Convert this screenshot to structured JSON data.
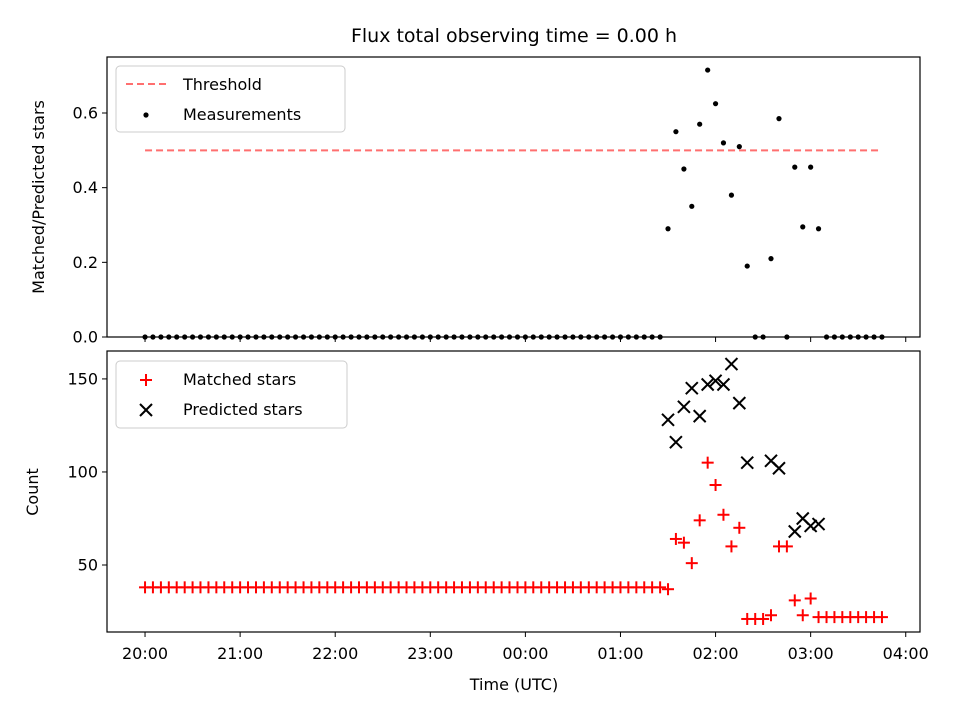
{
  "figure": {
    "title": "Flux total observing time = 0.00 h"
  },
  "chart_data": [
    {
      "type": "scatter",
      "panel": "top",
      "ylabel": "Matched/Predicted stars",
      "ylim": [
        0,
        0.75
      ],
      "yticks": [
        0.0,
        0.2,
        0.4,
        0.6
      ],
      "ytick_labels": [
        "0.0",
        "0.2",
        "0.4",
        "0.6"
      ],
      "xlim_hours": [
        -0.4,
        8.15
      ],
      "x_units": "hours since 20:00 UTC",
      "legend_position": "top-left",
      "threshold": {
        "name": "Threshold",
        "value": 0.5,
        "x_start": 0,
        "x_end": 7.75,
        "color": "#ff6f6f",
        "style": "dashed"
      },
      "series": [
        {
          "name": "Measurements",
          "color": "#000000",
          "marker": "dot",
          "points": [
            [
              0.0,
              0
            ],
            [
              0.083,
              0
            ],
            [
              0.167,
              0
            ],
            [
              0.25,
              0
            ],
            [
              0.333,
              0
            ],
            [
              0.417,
              0
            ],
            [
              0.5,
              0
            ],
            [
              0.583,
              0
            ],
            [
              0.667,
              0
            ],
            [
              0.75,
              0
            ],
            [
              0.833,
              0
            ],
            [
              0.917,
              0
            ],
            [
              1.0,
              0
            ],
            [
              1.083,
              0
            ],
            [
              1.167,
              0
            ],
            [
              1.25,
              0
            ],
            [
              1.333,
              0
            ],
            [
              1.417,
              0
            ],
            [
              1.5,
              0
            ],
            [
              1.583,
              0
            ],
            [
              1.667,
              0
            ],
            [
              1.75,
              0
            ],
            [
              1.833,
              0
            ],
            [
              1.917,
              0
            ],
            [
              2.0,
              0
            ],
            [
              2.083,
              0
            ],
            [
              2.167,
              0
            ],
            [
              2.25,
              0
            ],
            [
              2.333,
              0
            ],
            [
              2.417,
              0
            ],
            [
              2.5,
              0
            ],
            [
              2.583,
              0
            ],
            [
              2.667,
              0
            ],
            [
              2.75,
              0
            ],
            [
              2.833,
              0
            ],
            [
              2.917,
              0
            ],
            [
              3.0,
              0
            ],
            [
              3.083,
              0
            ],
            [
              3.167,
              0
            ],
            [
              3.25,
              0
            ],
            [
              3.333,
              0
            ],
            [
              3.417,
              0
            ],
            [
              3.5,
              0
            ],
            [
              3.583,
              0
            ],
            [
              3.667,
              0
            ],
            [
              3.75,
              0
            ],
            [
              3.833,
              0
            ],
            [
              3.917,
              0
            ],
            [
              4.0,
              0
            ],
            [
              4.083,
              0
            ],
            [
              4.167,
              0
            ],
            [
              4.25,
              0
            ],
            [
              4.333,
              0
            ],
            [
              4.417,
              0
            ],
            [
              4.5,
              0
            ],
            [
              4.583,
              0
            ],
            [
              4.667,
              0
            ],
            [
              4.75,
              0
            ],
            [
              4.833,
              0
            ],
            [
              4.917,
              0
            ],
            [
              5.0,
              0
            ],
            [
              5.083,
              0
            ],
            [
              5.167,
              0
            ],
            [
              5.25,
              0
            ],
            [
              5.333,
              0
            ],
            [
              5.417,
              0
            ],
            [
              5.5,
              0.29
            ],
            [
              5.583,
              0.55
            ],
            [
              5.667,
              0.45
            ],
            [
              5.75,
              0.35
            ],
            [
              5.833,
              0.57
            ],
            [
              5.917,
              0.715
            ],
            [
              6.0,
              0.625
            ],
            [
              6.083,
              0.52
            ],
            [
              6.167,
              0.38
            ],
            [
              6.25,
              0.51
            ],
            [
              6.333,
              0.19
            ],
            [
              6.417,
              0
            ],
            [
              6.5,
              0
            ],
            [
              6.583,
              0.21
            ],
            [
              6.667,
              0.585
            ],
            [
              6.75,
              0
            ],
            [
              6.833,
              0.455
            ],
            [
              6.917,
              0.295
            ],
            [
              7.0,
              0.455
            ],
            [
              7.083,
              0.29
            ],
            [
              7.167,
              0
            ],
            [
              7.25,
              0
            ],
            [
              7.333,
              0
            ],
            [
              7.417,
              0
            ],
            [
              7.5,
              0
            ],
            [
              7.583,
              0
            ],
            [
              7.667,
              0
            ],
            [
              7.75,
              0
            ]
          ]
        }
      ]
    },
    {
      "type": "scatter",
      "panel": "bottom",
      "xlabel": "Time (UTC)",
      "ylabel": "Count",
      "ylim": [
        14,
        165
      ],
      "yticks": [
        50,
        100,
        150
      ],
      "ytick_labels": [
        "50",
        "100",
        "150"
      ],
      "xlim_hours": [
        -0.4,
        8.15
      ],
      "x_units": "hours since 20:00 UTC",
      "xticks": [
        0,
        1,
        2,
        3,
        4,
        5,
        6,
        7,
        8
      ],
      "xtick_labels": [
        "20:00",
        "21:00",
        "22:00",
        "23:00",
        "00:00",
        "01:00",
        "02:00",
        "03:00",
        "04:00"
      ],
      "legend_position": "top-left",
      "series": [
        {
          "name": "Matched stars",
          "color": "#ff0000",
          "marker": "plus",
          "points": [
            [
              0.0,
              38
            ],
            [
              0.083,
              38
            ],
            [
              0.167,
              38
            ],
            [
              0.25,
              38
            ],
            [
              0.333,
              38
            ],
            [
              0.417,
              38
            ],
            [
              0.5,
              38
            ],
            [
              0.583,
              38
            ],
            [
              0.667,
              38
            ],
            [
              0.75,
              38
            ],
            [
              0.833,
              38
            ],
            [
              0.917,
              38
            ],
            [
              1.0,
              38
            ],
            [
              1.083,
              38
            ],
            [
              1.167,
              38
            ],
            [
              1.25,
              38
            ],
            [
              1.333,
              38
            ],
            [
              1.417,
              38
            ],
            [
              1.5,
              38
            ],
            [
              1.583,
              38
            ],
            [
              1.667,
              38
            ],
            [
              1.75,
              38
            ],
            [
              1.833,
              38
            ],
            [
              1.917,
              38
            ],
            [
              2.0,
              38
            ],
            [
              2.083,
              38
            ],
            [
              2.167,
              38
            ],
            [
              2.25,
              38
            ],
            [
              2.333,
              38
            ],
            [
              2.417,
              38
            ],
            [
              2.5,
              38
            ],
            [
              2.583,
              38
            ],
            [
              2.667,
              38
            ],
            [
              2.75,
              38
            ],
            [
              2.833,
              38
            ],
            [
              2.917,
              38
            ],
            [
              3.0,
              38
            ],
            [
              3.083,
              38
            ],
            [
              3.167,
              38
            ],
            [
              3.25,
              38
            ],
            [
              3.333,
              38
            ],
            [
              3.417,
              38
            ],
            [
              3.5,
              38
            ],
            [
              3.583,
              38
            ],
            [
              3.667,
              38
            ],
            [
              3.75,
              38
            ],
            [
              3.833,
              38
            ],
            [
              3.917,
              38
            ],
            [
              4.0,
              38
            ],
            [
              4.083,
              38
            ],
            [
              4.167,
              38
            ],
            [
              4.25,
              38
            ],
            [
              4.333,
              38
            ],
            [
              4.417,
              38
            ],
            [
              4.5,
              38
            ],
            [
              4.583,
              38
            ],
            [
              4.667,
              38
            ],
            [
              4.75,
              38
            ],
            [
              4.833,
              38
            ],
            [
              4.917,
              38
            ],
            [
              5.0,
              38
            ],
            [
              5.083,
              38
            ],
            [
              5.167,
              38
            ],
            [
              5.25,
              38
            ],
            [
              5.333,
              38
            ],
            [
              5.417,
              38
            ],
            [
              5.5,
              37
            ],
            [
              5.583,
              64
            ],
            [
              5.667,
              62
            ],
            [
              5.75,
              51
            ],
            [
              5.833,
              74
            ],
            [
              5.917,
              105
            ],
            [
              6.0,
              93
            ],
            [
              6.083,
              77
            ],
            [
              6.167,
              60
            ],
            [
              6.25,
              70
            ],
            [
              6.333,
              21
            ],
            [
              6.417,
              21
            ],
            [
              6.5,
              21
            ],
            [
              6.583,
              23
            ],
            [
              6.667,
              60
            ],
            [
              6.75,
              60
            ],
            [
              6.833,
              31
            ],
            [
              6.917,
              23
            ],
            [
              7.0,
              32
            ],
            [
              7.083,
              22
            ],
            [
              7.167,
              22
            ],
            [
              7.25,
              22
            ],
            [
              7.333,
              22
            ],
            [
              7.417,
              22
            ],
            [
              7.5,
              22
            ],
            [
              7.583,
              22
            ],
            [
              7.667,
              22
            ],
            [
              7.75,
              22
            ]
          ]
        },
        {
          "name": "Predicted stars",
          "color": "#000000",
          "marker": "x",
          "points": [
            [
              5.5,
              128
            ],
            [
              5.583,
              116
            ],
            [
              5.667,
              135
            ],
            [
              5.75,
              145
            ],
            [
              5.833,
              130
            ],
            [
              5.917,
              147
            ],
            [
              6.0,
              149
            ],
            [
              6.083,
              147
            ],
            [
              6.167,
              158
            ],
            [
              6.25,
              137
            ],
            [
              6.333,
              105
            ],
            [
              6.583,
              106
            ],
            [
              6.667,
              102
            ],
            [
              6.833,
              68
            ],
            [
              6.917,
              75
            ],
            [
              7.0,
              71
            ],
            [
              7.083,
              72
            ]
          ]
        }
      ]
    }
  ]
}
